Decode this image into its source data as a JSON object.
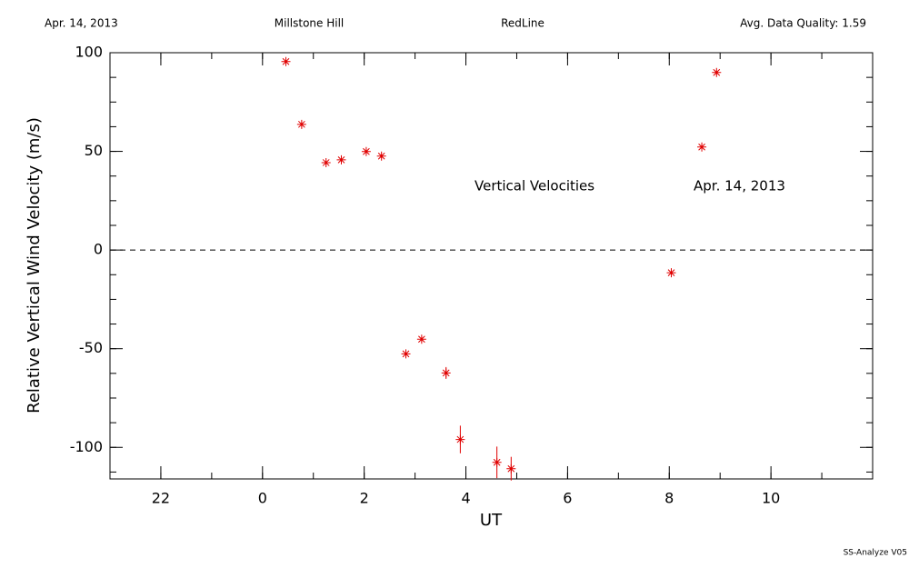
{
  "header": {
    "date": "Apr. 14, 2013",
    "site": "Millstone Hill",
    "instrument": "RedLine",
    "quality": "Avg. Data Quality: 1.59"
  },
  "footer": "SS-Analyze V05",
  "chart_data": {
    "type": "scatter",
    "xlabel": "UT",
    "ylabel": "Relative Vertical Wind Velocity (m/s)",
    "annotations": [
      "Vertical Velocities",
      "Apr. 14, 2013"
    ],
    "series": [
      {
        "name": "Vertical Velocities",
        "color": "#e00000",
        "x": [
          0.46,
          0.77,
          1.25,
          1.55,
          2.04,
          2.34,
          2.82,
          3.13,
          3.61,
          3.89,
          4.61,
          4.89,
          8.04,
          8.64,
          8.93
        ],
        "values": [
          95.5,
          63.7,
          44.3,
          45.7,
          49.9,
          47.6,
          -52.6,
          -45.2,
          -62.3,
          -96.0,
          -107.6,
          -110.8,
          -11.5,
          52.2,
          90.0
        ],
        "errors": [
          1,
          1,
          1,
          1,
          1,
          1,
          1,
          1,
          3,
          7,
          8,
          6,
          1,
          1,
          1
        ]
      }
    ],
    "xlim": [
      -3,
      12
    ],
    "xticks": [
      {
        "value": -2,
        "label": "22"
      },
      0,
      2,
      4,
      6,
      8,
      10
    ],
    "xminorticks": [
      -3,
      -2,
      -1,
      0,
      1,
      2,
      3,
      4,
      5,
      6,
      7,
      8,
      9,
      10,
      11,
      12
    ],
    "ylim": [
      -116,
      100
    ],
    "yticks": [
      -100,
      -50,
      0,
      50,
      100
    ],
    "yminorticks": [
      -112.5,
      -100,
      -87.5,
      -75,
      -62.5,
      -50,
      -37.5,
      -25,
      -12.5,
      0,
      12.5,
      25,
      37.5,
      50,
      62.5,
      75,
      87.5,
      100
    ],
    "hline": 0
  }
}
